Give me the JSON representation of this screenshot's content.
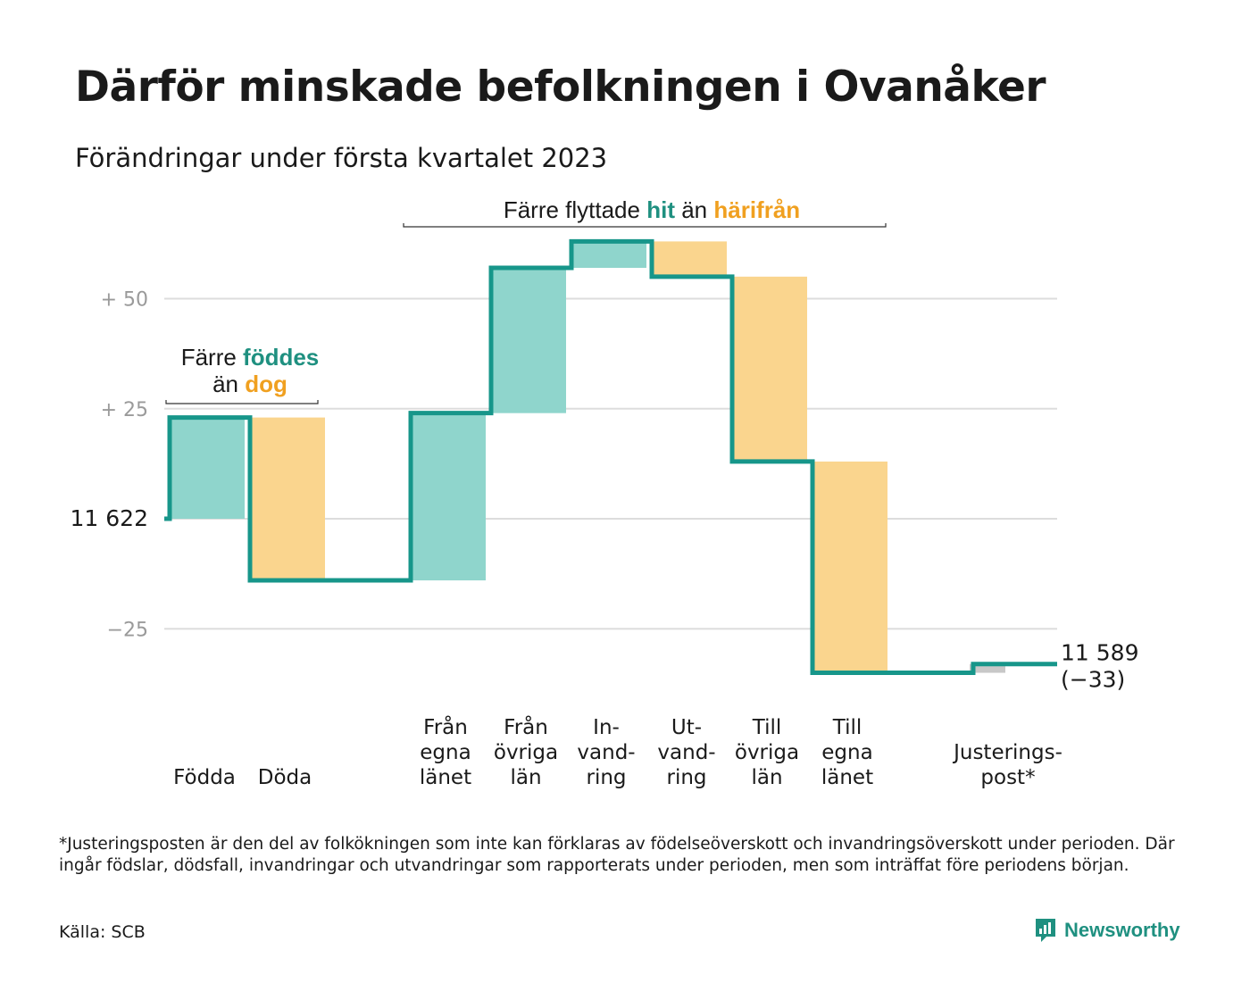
{
  "title": "Därför minskade befolkningen i Ovanåker",
  "subtitle": "Förändringar under första kvartalet 2023",
  "chart_data": {
    "type": "waterfall",
    "start_value": 11622,
    "start_label": "11 622",
    "end_label": "11 589",
    "end_change_label": "(−33)",
    "ylim": [
      -38,
      62
    ],
    "y_ticks": [
      {
        "value": 50,
        "label": "+ 50"
      },
      {
        "value": 25,
        "label": "+ 25"
      },
      {
        "value": 0,
        "label": ""
      },
      {
        "value": -25,
        "label": "−25"
      }
    ],
    "steps": [
      {
        "label": [
          "Födda"
        ],
        "change": 23,
        "kind": "in"
      },
      {
        "label": [
          "Döda"
        ],
        "change": -37,
        "kind": "out"
      },
      {
        "label": [],
        "change": 0,
        "kind": "none"
      },
      {
        "label": [
          "Från",
          "egna",
          "länet"
        ],
        "change": 38,
        "kind": "in"
      },
      {
        "label": [
          "Från",
          "övriga",
          "län"
        ],
        "change": 33,
        "kind": "in"
      },
      {
        "label": [
          "In-",
          "vand-",
          "ring"
        ],
        "change": 6,
        "kind": "in"
      },
      {
        "label": [
          "Ut-",
          "vand-",
          "ring"
        ],
        "change": -8,
        "kind": "out"
      },
      {
        "label": [
          "Till",
          "övriga",
          "län"
        ],
        "change": -42,
        "kind": "out"
      },
      {
        "label": [
          "Till",
          "egna",
          "länet"
        ],
        "change": -48,
        "kind": "out"
      },
      {
        "label": [],
        "change": 0,
        "kind": "none"
      },
      {
        "label": [
          "Justerings-",
          "post*"
        ],
        "change": 2,
        "kind": "adj"
      }
    ],
    "annotations": [
      {
        "group": "births",
        "parts": [
          {
            "text": "Färre ",
            "style": "plain"
          },
          {
            "text": "föddes",
            "style": "in"
          }
        ],
        "parts2": [
          {
            "text": "än ",
            "style": "plain"
          },
          {
            "text": "dog",
            "style": "out"
          }
        ]
      },
      {
        "group": "migration",
        "parts": [
          {
            "text": "Färre flyttade ",
            "style": "plain"
          },
          {
            "text": "hit",
            "style": "in"
          },
          {
            "text": " än ",
            "style": "plain"
          },
          {
            "text": "härifrån",
            "style": "out"
          }
        ]
      }
    ],
    "colors": {
      "in_fill": "#8fd5cc",
      "out_fill": "#fad58e",
      "adj_fill": "#c8c8c8",
      "line": "#17968a",
      "in_text": "#1f9080",
      "out_text": "#f0a020",
      "grid": "#dddddd",
      "tick_text": "#9a9a9a"
    }
  },
  "footnote": "*Justeringsposten är den del av folkökningen som inte kan förklaras av födelseöverskott och invandringsöverskott under perioden. Där ingår födslar, dödsfall, invandringar och utvandringar som rapporterats under perioden, men som inträffat före periodens början.",
  "source": "Källa: SCB",
  "brand": "Newsworthy"
}
